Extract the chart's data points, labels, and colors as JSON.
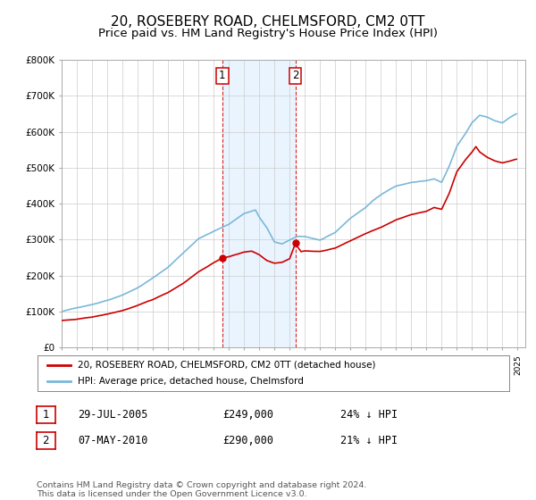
{
  "title": "20, ROSEBERY ROAD, CHELMSFORD, CM2 0TT",
  "subtitle": "Price paid vs. HM Land Registry's House Price Index (HPI)",
  "title_fontsize": 11,
  "subtitle_fontsize": 9.5,
  "background_color": "#ffffff",
  "plot_bg_color": "#ffffff",
  "grid_color": "#cccccc",
  "hpi_color": "#7ab8d9",
  "price_color": "#cc0000",
  "marker_color": "#cc0000",
  "vline_color": "#cc0000",
  "vshade_color": "#ddeeff",
  "sale1_x_year": 2005.57,
  "sale1_price": 249000,
  "sale1_label": "1",
  "sale2_x_year": 2010.37,
  "sale2_price": 290000,
  "sale2_label": "2",
  "ylim_min": 0,
  "ylim_max": 800000,
  "xlim_min": 1995.0,
  "xlim_max": 2025.5,
  "legend_line1": "20, ROSEBERY ROAD, CHELMSFORD, CM2 0TT (detached house)",
  "legend_line2": "HPI: Average price, detached house, Chelmsford",
  "table_row1_num": "1",
  "table_row1_date": "29-JUL-2005",
  "table_row1_price": "£249,000",
  "table_row1_hpi": "24% ↓ HPI",
  "table_row2_num": "2",
  "table_row2_date": "07-MAY-2010",
  "table_row2_price": "£290,000",
  "table_row2_hpi": "21% ↓ HPI",
  "footer": "Contains HM Land Registry data © Crown copyright and database right 2024.\nThis data is licensed under the Open Government Licence v3.0."
}
